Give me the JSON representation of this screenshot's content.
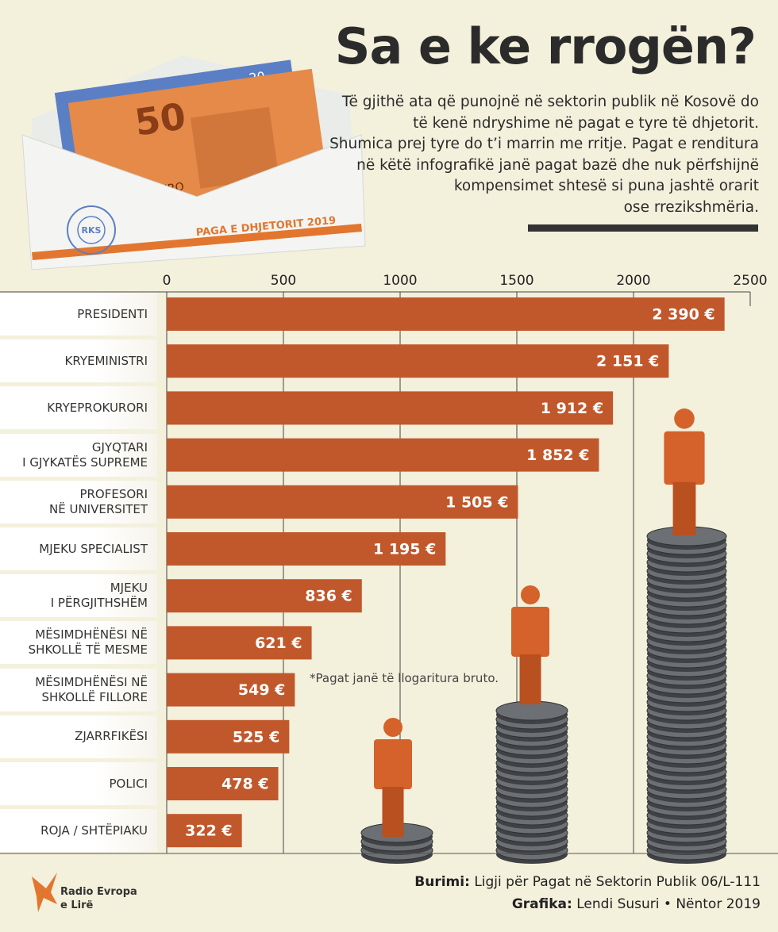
{
  "header": {
    "title": "Sa e ke rrogën?",
    "description": "Të gjithë ata që punojnë në sektorin publik në Kosovë do\ntë kenë ndryshime në pagat e tyre të dhjetorit.\nShumica prej tyre do t’i marrin me rritje. Pagat e renditura\nnë këtë infografikë janë pagat bazë dhe nuk përfshijnë\nkompensimet shtesë si puna jashtë orarit\nose rrezikshmëria."
  },
  "envelope": {
    "label": "PAGA E DHJETORIT 2019",
    "stamp": "RKS",
    "note_value": "50",
    "note_text": "EURO",
    "note_value_back": "20"
  },
  "chart_data": {
    "type": "bar",
    "orientation": "horizontal",
    "categories": [
      "PRESIDENTI",
      "KRYEMINISTRI",
      "KRYEPROKURORI",
      "GJYQTARI\nI GJYKATËS SUPREME",
      "PROFESORI\nNË UNIVERSITET",
      "MJEKU SPECIALIST",
      "MJEKU\nI PËRGJITHSHËM",
      "MËSIMDHËNËSI NË\nSHKOLLË TË MESME",
      "MËSIMDHËNËSI NË\nSHKOLLË FILLORE",
      "ZJARRFIKËSI",
      "POLICI",
      "ROJA / SHTËPIAKU"
    ],
    "values": [
      2390,
      2151,
      1912,
      1852,
      1505,
      1195,
      836,
      621,
      549,
      525,
      478,
      322
    ],
    "value_labels": [
      "2 390 €",
      "2 151 €",
      "1 912 €",
      "1 852 €",
      "1 505 €",
      "1 195 €",
      "836 €",
      "621 €",
      "549 €",
      "525 €",
      "478 €",
      "322 €"
    ],
    "xlim": [
      0,
      2500
    ],
    "xticks": [
      0,
      500,
      1000,
      1500,
      2000,
      2500
    ],
    "color": "#c1582b",
    "grid": true,
    "note": "*Pagat janë të llogaritura bruto."
  },
  "footer": {
    "source_label": "Burimi:",
    "source": "Ligji për Pagat në Sektorin Publik 06/L-111",
    "credit_label": "Grafika:",
    "credit": "Lendi Susuri • Nëntor 2019",
    "logo": "Radio Evropa\ne Lirë"
  }
}
